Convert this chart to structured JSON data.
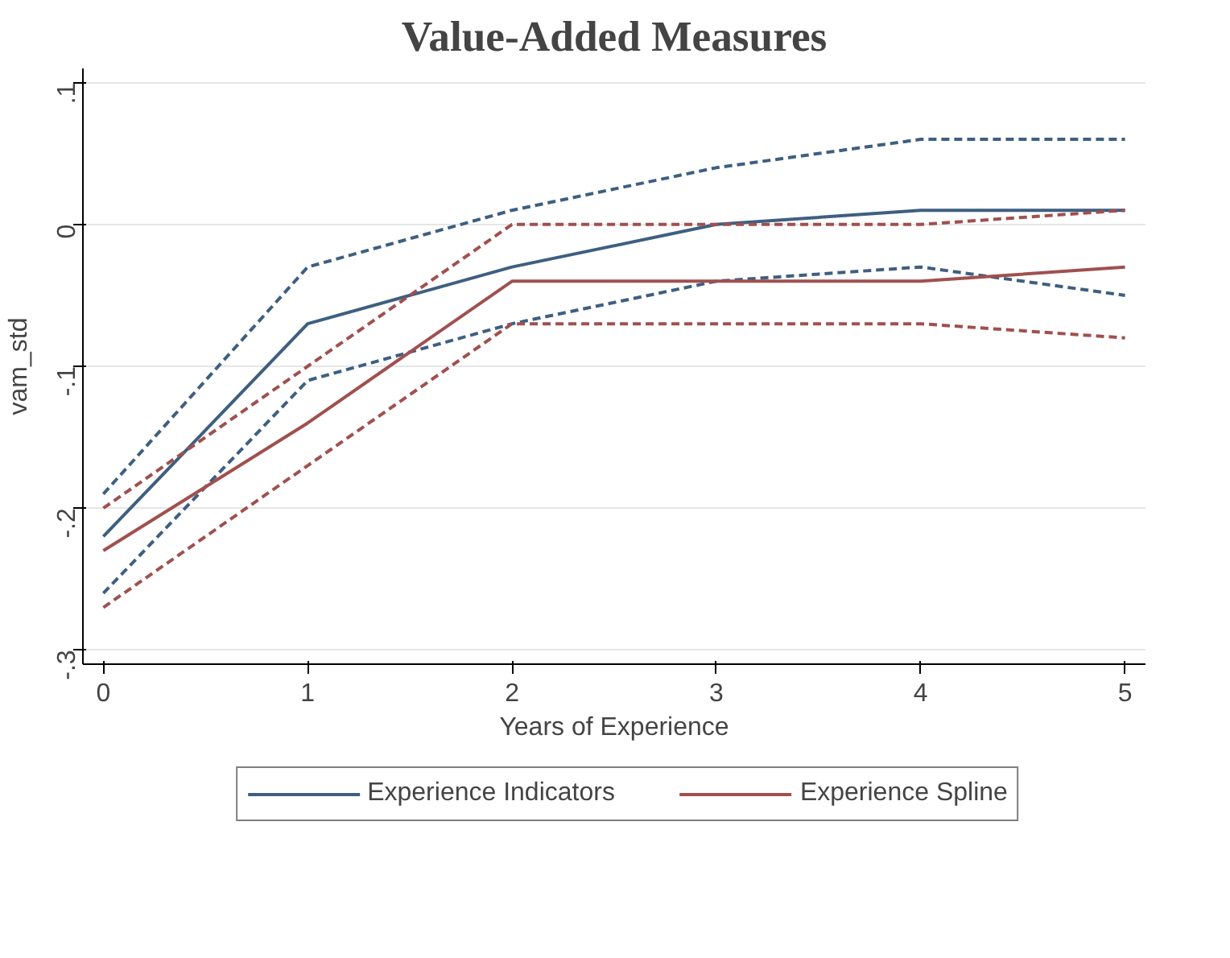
{
  "chart_data": {
    "type": "line",
    "title": "Value-Added Measures",
    "xlabel": "Years of Experience",
    "ylabel": "vam_std",
    "x": [
      0,
      1,
      2,
      3,
      4,
      5
    ],
    "series": [
      {
        "name": "Experience Indicators",
        "color": "#3e5f80",
        "line_style": "solid",
        "values": [
          -0.22,
          -0.07,
          -0.03,
          0.0,
          0.01,
          0.01
        ]
      },
      {
        "color": "#3e5f80",
        "line_style": "dashed",
        "values": [
          -0.19,
          -0.03,
          0.01,
          0.04,
          0.06,
          0.06
        ]
      },
      {
        "color": "#3e5f80",
        "line_style": "dashed",
        "values": [
          -0.26,
          -0.11,
          -0.07,
          -0.04,
          -0.03,
          -0.05
        ]
      },
      {
        "name": "Experience Spline",
        "color": "#a0504f",
        "line_style": "solid",
        "values": [
          -0.23,
          -0.14,
          -0.04,
          -0.04,
          -0.04,
          -0.03
        ]
      },
      {
        "color": "#a0504f",
        "line_style": "dashed",
        "values": [
          -0.2,
          -0.1,
          0.0,
          0.0,
          0.0,
          0.01
        ]
      },
      {
        "color": "#a0504f",
        "line_style": "dashed",
        "values": [
          -0.27,
          -0.17,
          -0.07,
          -0.07,
          -0.07,
          -0.08
        ]
      }
    ],
    "xlim": [
      -0.1,
      5.1
    ],
    "ylim": [
      -0.31,
      0.11
    ],
    "xticks": [
      0,
      1,
      2,
      3,
      4,
      5
    ],
    "yticks": [
      {
        "value": 0.1,
        "label": ".1"
      },
      {
        "value": 0,
        "label": "0"
      },
      {
        "value": -0.1,
        "label": "-.1"
      },
      {
        "value": -0.2,
        "label": "-.2"
      },
      {
        "value": -0.3,
        "label": "-.3"
      }
    ],
    "grid": "y",
    "legend": "bottom",
    "marker": "none"
  }
}
